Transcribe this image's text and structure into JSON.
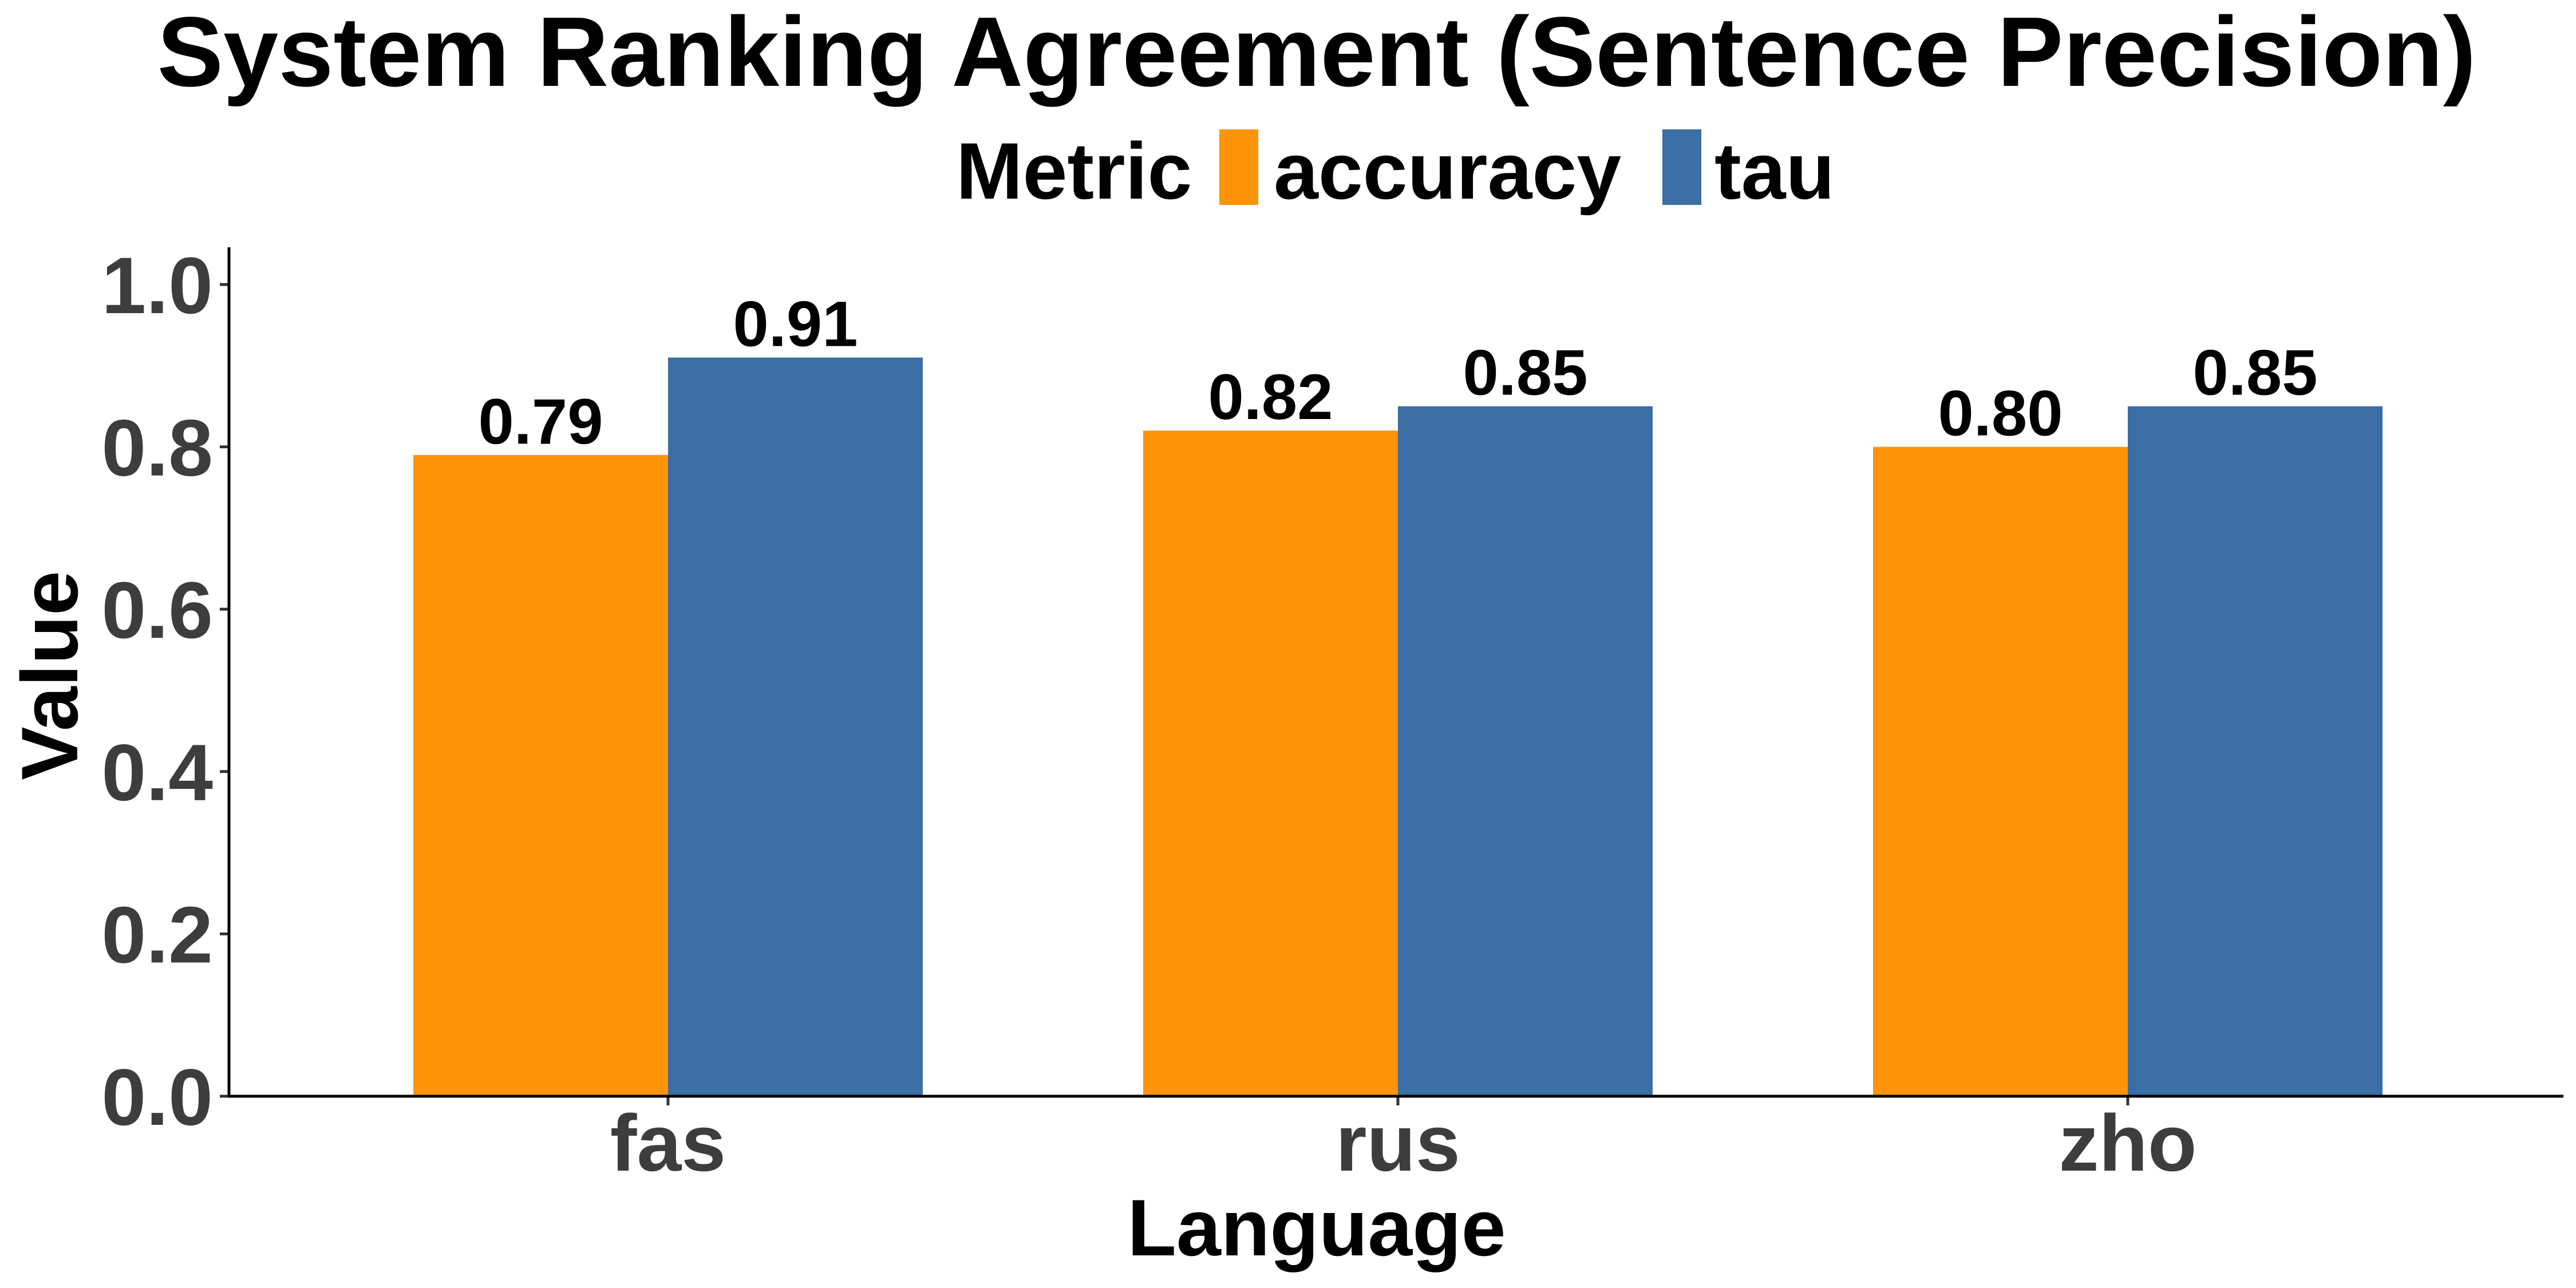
{
  "chart_data": {
    "type": "bar",
    "title": "System Ranking Agreement (Sentence Precision)",
    "legend": {
      "title": "Metric",
      "placement": "top"
    },
    "xlabel": "Language",
    "ylabel": "Value",
    "categories": [
      "fas",
      "rus",
      "zho"
    ],
    "series": [
      {
        "name": "accuracy",
        "color": "#ff9408",
        "values": [
          0.79,
          0.82,
          0.8
        ],
        "labels": [
          "0.79",
          "0.82",
          "0.80"
        ]
      },
      {
        "name": "tau",
        "color": "#3a6ea5",
        "values": [
          0.91,
          0.85,
          0.85
        ],
        "labels": [
          "0.91",
          "0.85",
          "0.85"
        ]
      }
    ],
    "ylim": [
      0,
      1.04
    ],
    "yticks": [
      0,
      0.2,
      0.4,
      0.6,
      0.8,
      1.0
    ],
    "ytick_labels": [
      "0.0",
      "0.2",
      "0.4",
      "0.6",
      "0.8",
      "1.0"
    ],
    "grid": false
  }
}
